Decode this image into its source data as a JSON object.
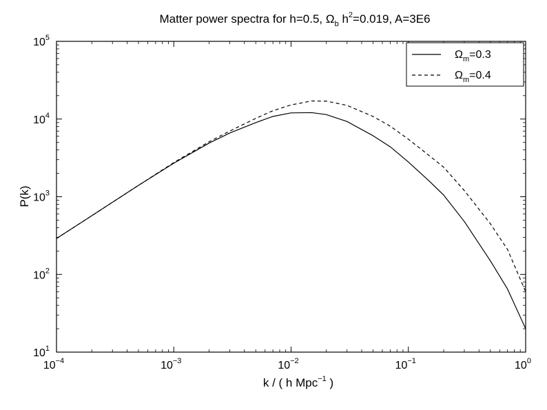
{
  "chart_data": {
    "type": "line",
    "title": {
      "prefix": "Matter power spectra for h=0.5, ",
      "omega": "Ω",
      "omega_sub": "b",
      "h": " h",
      "h_sup": "2",
      "suffix": "=0.019, A=3E6"
    },
    "xlabel": {
      "prefix": "k  / ( h Mpc",
      "sup": "−1",
      "suffix": " )"
    },
    "ylabel": "P(k)",
    "x_scale": "log",
    "y_scale": "log",
    "xlim": [
      0.0001,
      1
    ],
    "ylim": [
      10,
      100000
    ],
    "grid": false,
    "legend_position": "top-right",
    "x_ticks": [
      {
        "value": 0.0001,
        "base": "10",
        "exp": "−4"
      },
      {
        "value": 0.001,
        "base": "10",
        "exp": "−3"
      },
      {
        "value": 0.01,
        "base": "10",
        "exp": "−2"
      },
      {
        "value": 0.1,
        "base": "10",
        "exp": "−1"
      },
      {
        "value": 1,
        "base": "10",
        "exp": "0"
      }
    ],
    "y_ticks": [
      {
        "value": 10,
        "base": "10",
        "exp": "1"
      },
      {
        "value": 100,
        "base": "10",
        "exp": "2"
      },
      {
        "value": 1000,
        "base": "10",
        "exp": "3"
      },
      {
        "value": 10000,
        "base": "10",
        "exp": "4"
      },
      {
        "value": 100000,
        "base": "10",
        "exp": "5"
      }
    ],
    "series": [
      {
        "name": "Ωm=0.3",
        "legend_symbol": "Ω",
        "legend_sub": "m",
        "legend_value": "=0.3",
        "line_style": "solid",
        "color": "#000000",
        "x": [
          0.0001,
          0.0002,
          0.0005,
          0.001,
          0.002,
          0.003,
          0.005,
          0.007,
          0.01,
          0.015,
          0.02,
          0.03,
          0.05,
          0.07,
          0.1,
          0.15,
          0.2,
          0.3,
          0.5,
          0.7,
          1.0
        ],
        "y": [
          290,
          570,
          1400,
          2700,
          4900,
          6600,
          9000,
          10800,
          12000,
          12100,
          11400,
          9300,
          6100,
          4400,
          2800,
          1600,
          1050,
          480,
          150,
          65,
          20
        ]
      },
      {
        "name": "Ωm=0.4",
        "legend_symbol": "Ω",
        "legend_sub": "m",
        "legend_value": "=0.4",
        "line_style": "dashed",
        "color": "#000000",
        "x": [
          0.0001,
          0.0002,
          0.0005,
          0.001,
          0.002,
          0.003,
          0.005,
          0.007,
          0.01,
          0.015,
          0.02,
          0.03,
          0.05,
          0.07,
          0.1,
          0.15,
          0.2,
          0.3,
          0.5,
          0.7,
          1.0
        ],
        "y": [
          290,
          570,
          1400,
          2750,
          5100,
          7000,
          10200,
          12800,
          15200,
          17100,
          17000,
          15000,
          10800,
          8100,
          5500,
          3400,
          2400,
          1200,
          450,
          210,
          60
        ]
      }
    ]
  }
}
